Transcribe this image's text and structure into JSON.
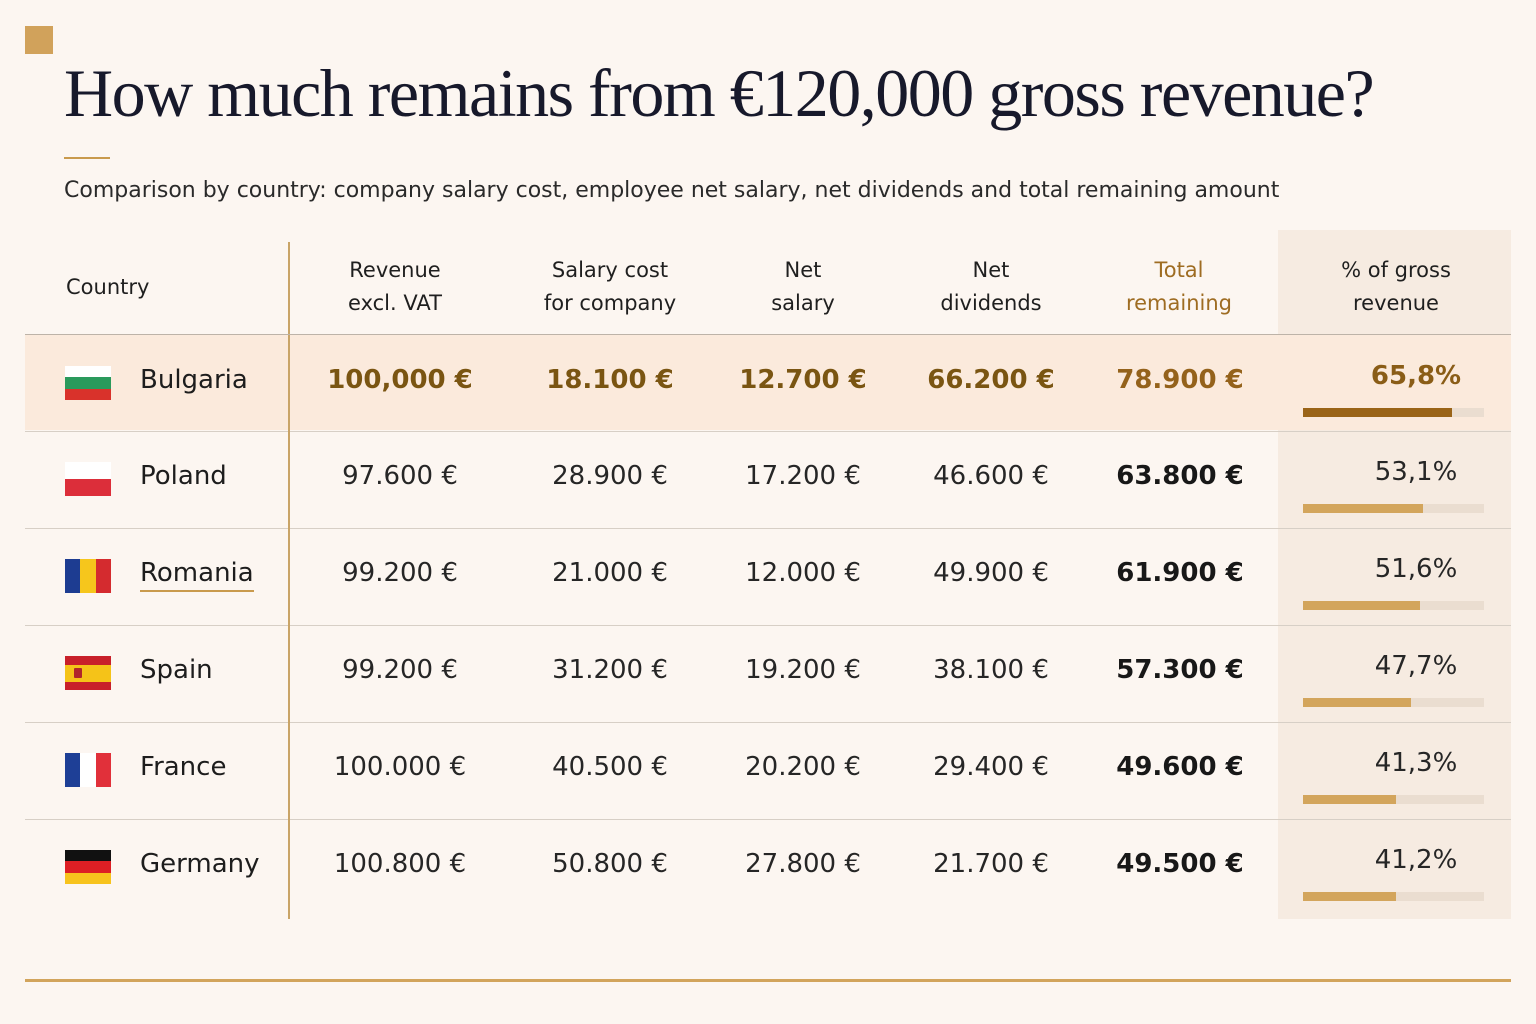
{
  "title": "How much remains from €120,000 gross revenue?",
  "subtitle": "Comparison by country: company salary cost, employee net salary, net dividends and total remaining amount",
  "headers": {
    "country": "Country",
    "revenue": "Revenue\nexcl. VAT",
    "salary_cost": "Salary cost\nfor company",
    "net_salary": "Net\nsalary",
    "net_dividends": "Net\ndividends",
    "total_remaining": "Total\nremaining",
    "pct_gross": "% of gross\nrevenue"
  },
  "colors": {
    "accent_gold": "#d1a25b",
    "highlight_row": "#fbeadc",
    "highlight_bar": "#9a6418",
    "bar": "#d3a55c"
  },
  "chart_data": {
    "type": "table",
    "title": "How much remains from €120,000 gross revenue?",
    "subtitle": "Comparison by country: company salary cost, employee net salary, net dividends and total remaining amount",
    "columns": [
      "Country",
      "Revenue excl. VAT",
      "Salary cost for company",
      "Net salary",
      "Net dividends",
      "Total remaining",
      "% of gross revenue"
    ],
    "rows": [
      {
        "country": "Bulgaria",
        "flag": "bulgaria-flag-icon",
        "revenue": "100,000 €",
        "salary_cost": "18.100 €",
        "net_salary": "12.700 €",
        "net_dividends": "66.200 €",
        "total_remaining": "78.900 €",
        "pct_label": "65,8%",
        "pct_value": 65.8,
        "highlighted": true
      },
      {
        "country": "Poland",
        "flag": "poland-flag-icon",
        "revenue": "97.600 €",
        "salary_cost": "28.900 €",
        "net_salary": "17.200 €",
        "net_dividends": "46.600 €",
        "total_remaining": "63.800 €",
        "pct_label": "53,1%",
        "pct_value": 53.1,
        "highlighted": false
      },
      {
        "country": "Romania",
        "flag": "romania-flag-icon",
        "revenue": "99.200 €",
        "salary_cost": "21.000 €",
        "net_salary": "12.000 €",
        "net_dividends": "49.900 €",
        "total_remaining": "61.900 €",
        "pct_label": "51,6%",
        "pct_value": 51.6,
        "highlighted": false
      },
      {
        "country": "Spain",
        "flag": "spain-flag-icon",
        "revenue": "99.200 €",
        "salary_cost": "31.200 €",
        "net_salary": "19.200 €",
        "net_dividends": "38.100 €",
        "total_remaining": "57.300 €",
        "pct_label": "47,7%",
        "pct_value": 47.7,
        "highlighted": false
      },
      {
        "country": "France",
        "flag": "france-flag-icon",
        "revenue": "100.000 €",
        "salary_cost": "40.500 €",
        "net_salary": "20.200 €",
        "net_dividends": "29.400 €",
        "total_remaining": "49.600 €",
        "pct_label": "41,3%",
        "pct_value": 41.3,
        "highlighted": false
      },
      {
        "country": "Germany",
        "flag": "germany-flag-icon",
        "revenue": "100.800 €",
        "salary_cost": "50.800 €",
        "net_salary": "27.800 €",
        "net_dividends": "21.700 €",
        "total_remaining": "49.500 €",
        "pct_label": "41,2%",
        "pct_value": 41.2,
        "highlighted": false
      }
    ],
    "bar_scale_max": 80
  }
}
